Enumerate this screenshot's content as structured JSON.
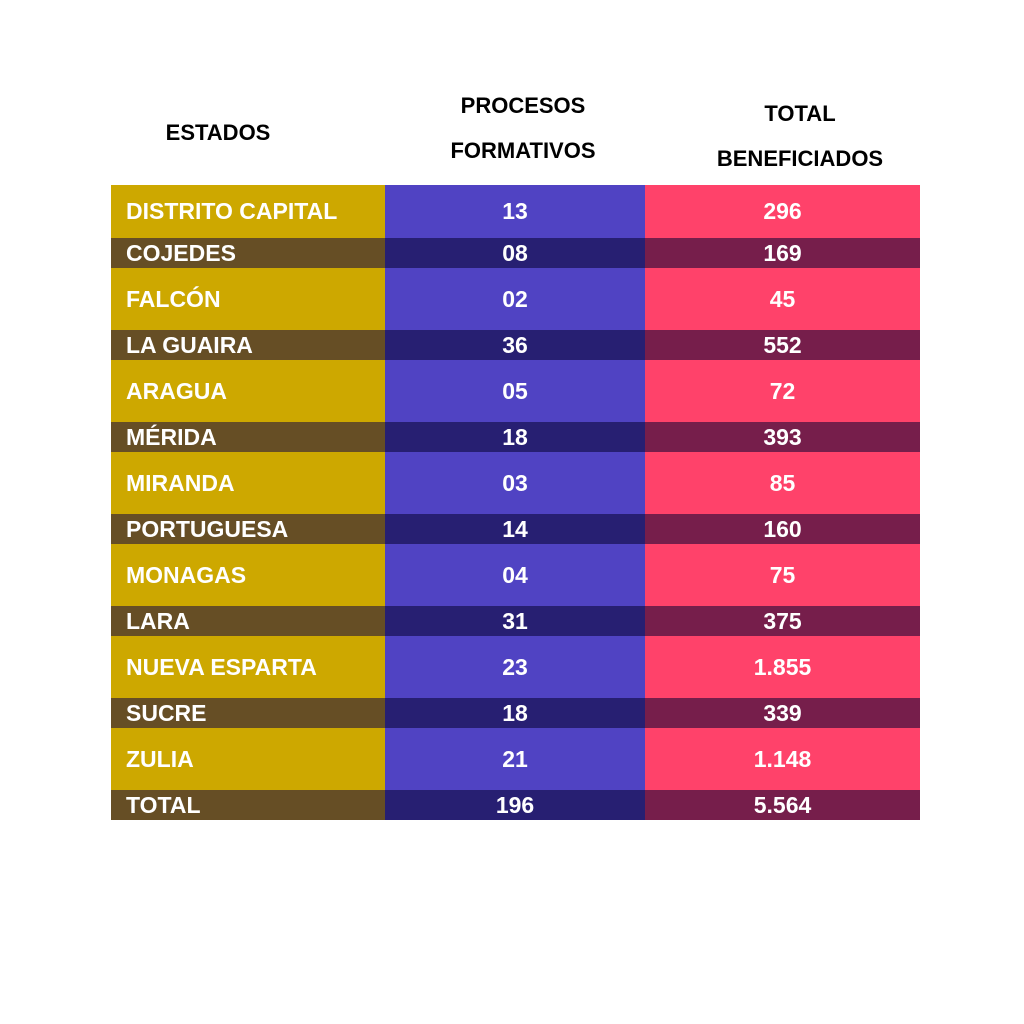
{
  "headers": {
    "estados": "ESTADOS",
    "procesos_line1": "PROCESOS",
    "procesos_line2": "FORMATIVOS",
    "total_line1": "TOTAL",
    "total_line2": "BENEFICIADOS"
  },
  "colors": {
    "state_light": "#CDA800",
    "state_dark": "#664E25",
    "procesos_light": "#5043C3",
    "procesos_dark": "#271F72",
    "total_light": "#FF426A",
    "total_dark": "#761E4B"
  },
  "chart_data": {
    "type": "table",
    "columns": [
      "ESTADOS",
      "PROCESOS FORMATIVOS",
      "TOTAL BENEFICIADOS"
    ],
    "rows": [
      {
        "estado": "DISTRITO CAPITAL",
        "procesos": "13",
        "beneficiados": "296"
      },
      {
        "estado": "COJEDES",
        "procesos": "08",
        "beneficiados": "169"
      },
      {
        "estado": "FALCÓN",
        "procesos": "02",
        "beneficiados": "45"
      },
      {
        "estado": "LA GUAIRA",
        "procesos": "36",
        "beneficiados": "552"
      },
      {
        "estado": "ARAGUA",
        "procesos": "05",
        "beneficiados": "72"
      },
      {
        "estado": "MÉRIDA",
        "procesos": "18",
        "beneficiados": "393"
      },
      {
        "estado": "MIRANDA",
        "procesos": "03",
        "beneficiados": "85"
      },
      {
        "estado": "PORTUGUESA",
        "procesos": "14",
        "beneficiados": "160"
      },
      {
        "estado": "MONAGAS",
        "procesos": "04",
        "beneficiados": "75"
      },
      {
        "estado": "LARA",
        "procesos": "31",
        "beneficiados": "375"
      },
      {
        "estado": "NUEVA ESPARTA",
        "procesos": "23",
        "beneficiados": "1.855"
      },
      {
        "estado": "SUCRE",
        "procesos": "18",
        "beneficiados": "339"
      },
      {
        "estado": "ZULIA",
        "procesos": "21",
        "beneficiados": "1.148"
      },
      {
        "estado": "TOTAL",
        "procesos": "196",
        "beneficiados": "5.564"
      }
    ]
  }
}
